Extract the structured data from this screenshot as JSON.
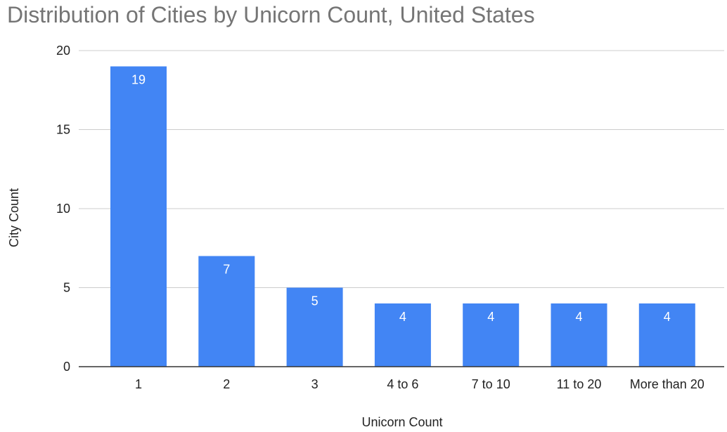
{
  "chart_data": {
    "type": "bar",
    "title": "Distribution of Cities by Unicorn Count, United States",
    "xlabel": "Unicorn Count",
    "ylabel": "City Count",
    "categories": [
      "1",
      "2",
      "3",
      "4 to 6",
      "7 to 10",
      "11 to 20",
      "More than 20"
    ],
    "values": [
      19,
      7,
      5,
      4,
      4,
      4,
      4
    ],
    "ylim": [
      0,
      20
    ],
    "yticks": [
      0,
      5,
      10,
      15,
      20
    ],
    "grid": true,
    "legend": "none",
    "bar_color": "#4285f4",
    "data_labels": true
  }
}
